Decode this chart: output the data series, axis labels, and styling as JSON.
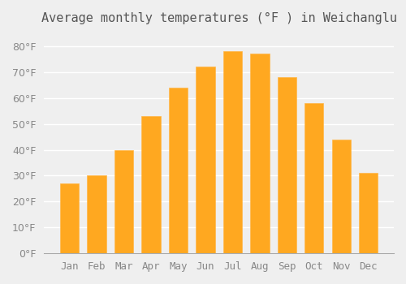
{
  "title": "Average monthly temperatures (°F ) in Weichanglu",
  "months": [
    "Jan",
    "Feb",
    "Mar",
    "Apr",
    "May",
    "Jun",
    "Jul",
    "Aug",
    "Sep",
    "Oct",
    "Nov",
    "Dec"
  ],
  "values": [
    27,
    30,
    40,
    53,
    64,
    72,
    78,
    77,
    68,
    58,
    44,
    31
  ],
  "bar_color": "#FFA820",
  "bar_edge_color": "#FFB84D",
  "background_color": "#EFEFEF",
  "grid_color": "#FFFFFF",
  "ylim": [
    0,
    85
  ],
  "yticks": [
    0,
    10,
    20,
    30,
    40,
    50,
    60,
    70,
    80
  ],
  "title_fontsize": 11,
  "tick_fontsize": 9
}
